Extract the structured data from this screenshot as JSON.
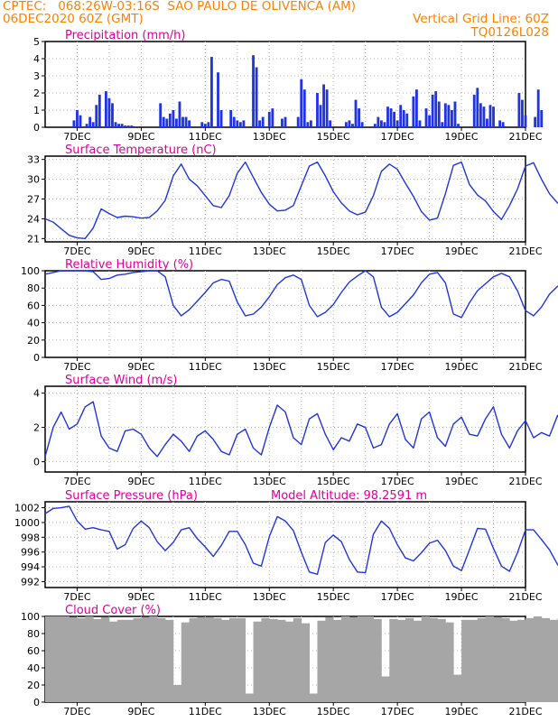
{
  "header": {
    "line1_left": "CPTEC:   068:26W-03:16S  SAO PAULO DE OLIVENCA (AM)",
    "line2_left": "06DEC2020 60Z (GMT)",
    "line2_right": "Vertical Grid Line: 60Z",
    "line3_right": "TQ0126L028"
  },
  "colors": {
    "header_text": "#ff8000",
    "panel_title": "#e0009a",
    "series_line": "#2035e0",
    "cloud_fill": "#a6a6a6",
    "grid": "#b0b0b0"
  },
  "x_tick_labels": [
    "7DEC",
    "9DEC",
    "11DEC",
    "13DEC",
    "15DEC",
    "17DEC",
    "19DEC",
    "21DEC"
  ],
  "chart_data": [
    {
      "type": "bar",
      "title": "Precipitation (mm/h)",
      "ylim": [
        0,
        5
      ],
      "yticks": [
        0,
        1,
        2,
        3,
        4,
        5
      ],
      "x_unit": "days since 06DEC2020 00Z",
      "x": [
        0.9,
        1.0,
        1.1,
        1.3,
        1.4,
        1.5,
        1.6,
        1.7,
        1.9,
        2.0,
        2.1,
        2.2,
        2.3,
        2.4,
        2.5,
        2.6,
        2.7,
        3.6,
        3.7,
        3.8,
        3.9,
        4.0,
        4.1,
        4.2,
        4.3,
        4.4,
        4.5,
        4.9,
        5.0,
        5.1,
        5.2,
        5.4,
        5.5,
        5.8,
        5.9,
        6.0,
        6.1,
        6.2,
        6.5,
        6.6,
        6.7,
        6.8,
        7.0,
        7.1,
        7.4,
        7.5,
        7.9,
        8.0,
        8.1,
        8.2,
        8.3,
        8.5,
        8.6,
        8.7,
        8.8,
        8.9,
        9.4,
        9.5,
        9.6,
        9.7,
        9.8,
        9.9,
        10.3,
        10.4,
        10.5,
        10.6,
        10.7,
        10.8,
        10.9,
        11.0,
        11.1,
        11.2,
        11.3,
        11.5,
        11.6,
        11.7,
        11.9,
        12.0,
        12.1,
        12.2,
        12.3,
        12.4,
        12.5,
        12.6,
        12.7,
        12.8,
        12.9,
        13.4,
        13.5,
        13.6,
        13.7,
        13.8,
        13.9,
        14.0,
        14.2,
        14.3,
        14.8,
        14.9,
        15.0,
        15.3,
        15.4,
        15.5,
        16.1,
        16.2,
        16.3,
        16.4,
        16.5,
        16.6,
        16.7,
        17.4,
        17.5,
        17.6,
        17.7,
        17.8,
        17.9,
        18.2,
        18.3,
        18.4,
        18.5,
        18.6,
        18.7,
        18.8,
        19.3,
        19.4,
        19.5,
        19.6,
        19.7,
        19.8,
        19.9,
        20.0,
        20.2,
        20.3,
        20.4,
        20.5
      ],
      "values": [
        0.4,
        1.0,
        0.7,
        0.2,
        0.6,
        0.3,
        1.3,
        1.9,
        2.1,
        1.7,
        1.4,
        0.3,
        0.2,
        0.2,
        0.1,
        0.1,
        0.1,
        1.4,
        0.6,
        0.5,
        0.8,
        1.0,
        0.5,
        1.5,
        0.6,
        0.6,
        0.4,
        0.3,
        0.2,
        0.3,
        4.1,
        3.2,
        1.0,
        1.0,
        0.6,
        0.4,
        0.3,
        0.4,
        4.2,
        3.5,
        0.4,
        0.6,
        0.9,
        1.1,
        0.5,
        0.6,
        0.6,
        2.8,
        2.2,
        0.3,
        0.4,
        2.0,
        1.3,
        2.5,
        2.2,
        0.4,
        0.3,
        0.4,
        0.2,
        1.6,
        1.1,
        0.3,
        0.2,
        0.6,
        0.4,
        0.3,
        1.2,
        1.1,
        0.9,
        0.4,
        1.3,
        1.0,
        0.8,
        1.8,
        2.2,
        0.4,
        1.1,
        0.7,
        1.9,
        2.1,
        1.5,
        0.3,
        1.4,
        1.3,
        1.0,
        1.5,
        0.2,
        1.9,
        2.3,
        1.4,
        1.2,
        0.5,
        1.3,
        1.2,
        0.4,
        0.3,
        2.0,
        1.6,
        0.7,
        0.6,
        2.2,
        1.0,
        3.3,
        3.0,
        1.7,
        0.4,
        0.3,
        0.3,
        0.2,
        0.4,
        3.0,
        2.8,
        0.6,
        1.2,
        0.4,
        0.6,
        0.3,
        0.8,
        0.9,
        1.9,
        0.5,
        3.4,
        3.2,
        0.3,
        0.3,
        0.4,
        0.3,
        1.7,
        1.1,
        0.6,
        0.4,
        0.3,
        2.9,
        3.3
      ]
    },
    {
      "type": "line",
      "title": "Surface Temperature (nC)",
      "ylim": [
        20.5,
        33.5
      ],
      "yticks": [
        21,
        24,
        27,
        30,
        33
      ],
      "x_start": 0,
      "x_step": 0.25,
      "x_unit": "days since 06DEC2020 00Z",
      "values": [
        24.0,
        23.5,
        22.5,
        21.5,
        21.1,
        21.0,
        22.6,
        25.5,
        24.8,
        24.2,
        24.4,
        24.3,
        24.1,
        24.2,
        25.2,
        26.8,
        30.5,
        32.3,
        30.0,
        29.0,
        27.5,
        26.0,
        25.7,
        27.5,
        30.9,
        32.6,
        30.3,
        28.0,
        26.2,
        25.2,
        25.3,
        26.0,
        29.0,
        32.0,
        32.6,
        30.5,
        28.1,
        26.4,
        25.2,
        24.6,
        25.0,
        27.5,
        31.2,
        32.3,
        31.5,
        29.4,
        27.4,
        25.1,
        23.8,
        24.1,
        27.8,
        32.1,
        32.6,
        29.2,
        27.6,
        26.7,
        25.1,
        23.9,
        26.0,
        28.5,
        32.0,
        32.5,
        30.0,
        27.8,
        26.4,
        25.7,
        26.0,
        28.0,
        30.8,
        32.2,
        30.5,
        28.5,
        27.3,
        26.0,
        25.0,
        26.5,
        30.6,
        29.8,
        30.2,
        29.5,
        28.3,
        27.0,
        25.5,
        25.8,
        28.0,
        32.4,
        32.5,
        30.5,
        28.6,
        26.9,
        25.5,
        24.3,
        24.4,
        28.5,
        32.4,
        32.3,
        30.3,
        28.4,
        26.0,
        24.5,
        23.8,
        25.6,
        29.2,
        31.8,
        32.3,
        29.8,
        27.8,
        26.9,
        26.3,
        25.7,
        26.0,
        28.6,
        31.5,
        32.3,
        29.0,
        27.3,
        25.6,
        24.5,
        25.8,
        29.5,
        31.5,
        32.3,
        29.0,
        27.6,
        26.2,
        25.0,
        24.2,
        25.5,
        30.4,
        32.5,
        32.0,
        29.2,
        27.8,
        26.2,
        24.3,
        25.0,
        30.2,
        31.5,
        32.6,
        32.4,
        31.9,
        30.7
      ]
    },
    {
      "type": "line",
      "title": "Relative Humidity (%)",
      "ylim": [
        0,
        100
      ],
      "yticks": [
        0,
        20,
        40,
        60,
        80,
        100
      ],
      "x_start": 0,
      "x_step": 0.25,
      "x_unit": "days since 06DEC2020 00Z",
      "values": [
        96,
        98,
        100,
        100,
        100,
        100,
        99,
        90,
        91,
        95,
        96,
        98,
        99,
        100,
        100,
        93,
        60,
        48,
        55,
        65,
        75,
        86,
        90,
        88,
        64,
        48,
        50,
        58,
        70,
        84,
        92,
        95,
        90,
        60,
        47,
        52,
        61,
        75,
        87,
        94,
        100,
        93,
        58,
        47,
        52,
        62,
        72,
        86,
        96,
        98,
        86,
        50,
        46,
        63,
        77,
        85,
        93,
        97,
        93,
        77,
        54,
        48,
        58,
        73,
        82,
        88,
        92,
        91,
        75,
        50,
        56,
        65,
        74,
        82,
        86,
        93,
        62,
        71,
        61,
        65,
        70,
        75,
        83,
        94,
        87,
        55,
        44,
        54,
        68,
        80,
        90,
        96,
        98,
        94,
        54,
        47,
        58,
        70,
        84,
        93,
        96,
        100,
        100,
        100,
        86,
        55,
        66,
        72,
        78,
        83,
        88,
        94,
        85,
        70,
        50,
        46,
        56,
        67,
        81,
        90,
        94,
        84,
        65,
        48,
        53,
        63,
        72,
        83,
        93,
        94,
        80,
        58,
        47,
        60,
        72,
        83,
        91,
        94,
        73,
        56,
        47,
        48,
        60,
        65
      ]
    },
    {
      "type": "line",
      "title": "Surface Wind (m/s)",
      "ylim": [
        -0.6,
        4.4
      ],
      "yticks": [
        0,
        2,
        4
      ],
      "x_start": 0,
      "x_step": 0.25,
      "x_unit": "days since 06DEC2020 00Z",
      "values": [
        0.3,
        2.0,
        2.9,
        1.9,
        2.2,
        3.2,
        3.5,
        1.5,
        0.8,
        0.6,
        1.8,
        1.9,
        1.6,
        0.8,
        0.3,
        1.0,
        1.6,
        1.2,
        0.6,
        1.5,
        1.8,
        1.3,
        0.6,
        0.4,
        1.6,
        1.9,
        0.8,
        0.4,
        2.0,
        3.3,
        2.9,
        1.4,
        1.0,
        2.5,
        2.8,
        1.6,
        0.7,
        1.4,
        1.2,
        2.2,
        2.0,
        0.8,
        1.0,
        2.2,
        2.8,
        1.3,
        0.8,
        2.5,
        2.9,
        1.4,
        0.9,
        2.2,
        2.6,
        1.6,
        1.5,
        2.5,
        3.2,
        1.6,
        0.8,
        1.8,
        2.4,
        1.4,
        1.7,
        1.5,
        2.7,
        1.9,
        0.9,
        2.3,
        2.5,
        1.4,
        1.0,
        2.5,
        0.7,
        2.2,
        2.0,
        1.5,
        2.3,
        1.4,
        2.6,
        1.3,
        1.0,
        2.4,
        1.8,
        0.4,
        1.7,
        2.3,
        2.2,
        1.3,
        2.6,
        1.7,
        1.2,
        1.5,
        2.8,
        2.4,
        1.6,
        1.9,
        2.4,
        3.3,
        1.2,
        1.6,
        2.0,
        1.7,
        2.3,
        2.6,
        1.2,
        1.9,
        2.1,
        2.3,
        2.0,
        1.1,
        2.2,
        2.7,
        2.0,
        1.3,
        0.5,
        1.9,
        1.6,
        1.2,
        0.9,
        2.0,
        2.7,
        2.4,
        1.5,
        2.2,
        2.7,
        1.6,
        1.0,
        2.4,
        1.9,
        2.2,
        2.1,
        1.6,
        1.6,
        2.1,
        2.2,
        1.3,
        1.9,
        2.4,
        2.1,
        2.7,
        0.9,
        1.0
      ]
    },
    {
      "type": "line",
      "title": "Surface Pressure (hPa)",
      "annotation": "Model Altitude: 98.2591 m",
      "ylim": [
        991.2,
        1002.8
      ],
      "yticks": [
        992,
        994,
        996,
        998,
        1000,
        1002
      ],
      "x_start": 0,
      "x_step": 0.25,
      "x_unit": "days since 06DEC2020 00Z",
      "values": [
        1001.2,
        1001.9,
        1002.0,
        1002.2,
        1000.2,
        999.1,
        999.3,
        999.0,
        998.8,
        996.4,
        997.0,
        999.2,
        1000.2,
        999.3,
        997.4,
        996.2,
        997.3,
        999.0,
        999.3,
        997.8,
        996.7,
        995.4,
        996.9,
        998.8,
        998.8,
        997.0,
        994.5,
        994.1,
        998.1,
        1000.8,
        1000.2,
        998.9,
        996.0,
        993.3,
        993.0,
        997.3,
        998.3,
        997.4,
        995.0,
        993.3,
        993.2,
        998.4,
        1000.2,
        999.2,
        997.0,
        995.2,
        994.8,
        995.9,
        997.2,
        997.6,
        996.2,
        994.1,
        993.5,
        996.3,
        999.2,
        999.1,
        996.5,
        994.1,
        993.4,
        995.9,
        999.0,
        999.0,
        997.7,
        996.3,
        994.3,
        993.1,
        995.7,
        997.3,
        996.3,
        994.4,
        992.7,
        993.5,
        997.0,
        999.7,
        998.3,
        995.7,
        993.4,
        993.2,
        997.1,
        999.3,
        998.3,
        996.3,
        993.8,
        992.8,
        996.8,
        999.5,
        998.7,
        996.1,
        993.6,
        992.5,
        996.6,
        999.4,
        998.5,
        996.1,
        993.6,
        992.7,
        998.1,
        999.7,
        999.0,
        997.1,
        994.8,
        993.1,
        997.1,
        999.8,
        997.6,
        995.0,
        992.3,
        992.3,
        996.8,
        998.5,
        998.1,
        996.5,
        995.1,
        993.1,
        996.1,
        997.9,
        998.7,
        997.1,
        995.4,
        995.1,
        997.3,
        997.8,
        996.8,
        994.9,
        993.0,
        992.1,
        995.2,
        997.7,
        996.6,
        994.1,
        992.4,
        992.2,
        997.3,
        998.8,
        997.6,
        995.6,
        992.5,
        991.5,
        993.9,
        993.0
      ]
    },
    {
      "type": "bar",
      "title": "Cloud Cover (%)",
      "ylim": [
        0,
        100
      ],
      "yticks": [
        0,
        20,
        40,
        60,
        80,
        100
      ],
      "x_start": 0,
      "x_step": 0.25,
      "x_unit": "days since 06DEC2020 00Z",
      "values": [
        100,
        100,
        100,
        99,
        98,
        100,
        97,
        99,
        94,
        96,
        96,
        98,
        99,
        100,
        98,
        96,
        20,
        93,
        98,
        99,
        99,
        98,
        96,
        98,
        98,
        10,
        94,
        98,
        97,
        96,
        94,
        98,
        92,
        10,
        95,
        99,
        96,
        100,
        99,
        100,
        100,
        97,
        30,
        97,
        96,
        98,
        95,
        100,
        98,
        97,
        93,
        32,
        96,
        96,
        98,
        100,
        99,
        98,
        95,
        96,
        98,
        100,
        98,
        96,
        98,
        97,
        98,
        98,
        96,
        96,
        95,
        98,
        100,
        95,
        93,
        96,
        97,
        99,
        96,
        98,
        98,
        100,
        96,
        94,
        98,
        96,
        97,
        98,
        98,
        94,
        97,
        100,
        98,
        97,
        97,
        90,
        98,
        97,
        98,
        96,
        96,
        99,
        98,
        100,
        99,
        93,
        96,
        98,
        95,
        99,
        98,
        93,
        96,
        98,
        95,
        97,
        98,
        100,
        96,
        93,
        98,
        97,
        98,
        97,
        96,
        95,
        96,
        94,
        98,
        98,
        96,
        96,
        97,
        98,
        99,
        97,
        93,
        92,
        97,
        98,
        95,
        96
      ]
    }
  ]
}
